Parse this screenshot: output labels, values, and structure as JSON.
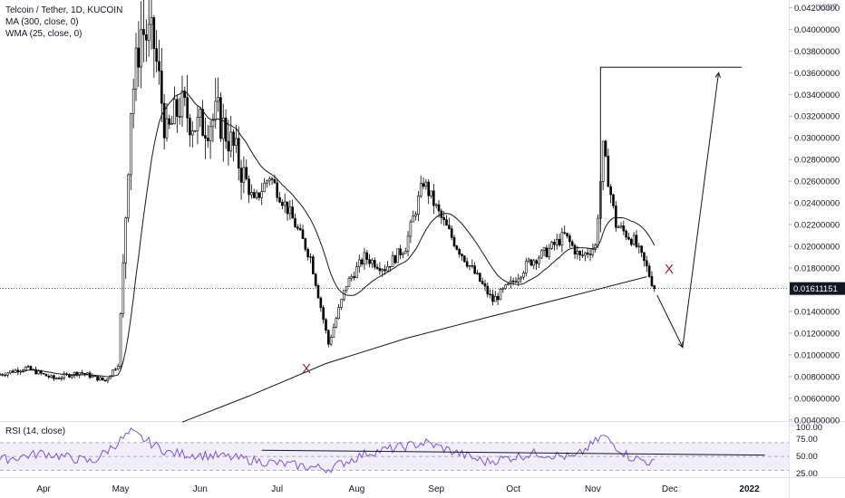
{
  "legend": {
    "title": "Telcoin / Tether, 1D, KUCOIN",
    "ma": "MA (300, close, 0)",
    "wma": "WMA (25, close, 0)"
  },
  "rsi_label": "RSI (14, close)",
  "currency": "USDT",
  "last_price_label": "0.01611151",
  "colors": {
    "candle": "#000000",
    "ma_line": "#131722",
    "dashed_line": "#8a8a8a",
    "red_dashed": "#a34a5a",
    "x_marker": "#8c2a3c",
    "rsi_band": "#7e57c2",
    "rsi_line": "#7e57c2",
    "last_price_bg": "#131722"
  },
  "annotations": {
    "marker_left": "X",
    "marker_right": "X"
  },
  "chart_data": [
    {
      "type": "candlestick",
      "title": "Telcoin / Tether, 1D, KUCOIN",
      "x_tick_labels": [
        "Apr",
        "May",
        "Jun",
        "Jul",
        "Aug",
        "Sep",
        "Oct",
        "Nov",
        "Dec",
        "2022"
      ],
      "y_tick_labels": [
        "0.04200000",
        "0.04000000",
        "0.03800000",
        "0.03600000",
        "0.03400000",
        "0.03200000",
        "0.03000000",
        "0.02800000",
        "0.02600000",
        "0.02400000",
        "0.02200000",
        "0.02000000",
        "0.01800000",
        "0.01400000",
        "0.01200000",
        "0.01000000",
        "0.00800000",
        "0.00600000",
        "0.00400000"
      ],
      "ylim": [
        0.0039,
        0.0427
      ],
      "last_price": 0.01611151,
      "price_path": [
        [
          "2021-03-15",
          0.0082
        ],
        [
          "2021-03-25",
          0.0088
        ],
        [
          "2021-04-05",
          0.0078
        ],
        [
          "2021-04-15",
          0.0084
        ],
        [
          "2021-04-25",
          0.0076
        ],
        [
          "2021-04-30",
          0.0092
        ],
        [
          "2021-05-02",
          0.018
        ],
        [
          "2021-05-05",
          0.033
        ],
        [
          "2021-05-09",
          0.04
        ],
        [
          "2021-05-14",
          0.0385
        ],
        [
          "2021-05-19",
          0.03
        ],
        [
          "2021-05-24",
          0.033
        ],
        [
          "2021-05-31",
          0.031
        ],
        [
          "2021-06-08",
          0.032
        ],
        [
          "2021-06-14",
          0.029
        ],
        [
          "2021-06-22",
          0.024
        ],
        [
          "2021-06-28",
          0.0265
        ],
        [
          "2021-07-06",
          0.023
        ],
        [
          "2021-07-14",
          0.019
        ],
        [
          "2021-07-21",
          0.011
        ],
        [
          "2021-07-28",
          0.0165
        ],
        [
          "2021-08-04",
          0.019
        ],
        [
          "2021-08-12",
          0.018
        ],
        [
          "2021-08-20",
          0.02
        ],
        [
          "2021-08-27",
          0.026
        ],
        [
          "2021-09-02",
          0.023
        ],
        [
          "2021-09-09",
          0.02
        ],
        [
          "2021-09-16",
          0.0175
        ],
        [
          "2021-09-23",
          0.015
        ],
        [
          "2021-09-30",
          0.0165
        ],
        [
          "2021-10-07",
          0.0185
        ],
        [
          "2021-10-14",
          0.0195
        ],
        [
          "2021-10-21",
          0.021
        ],
        [
          "2021-10-27",
          0.019
        ],
        [
          "2021-11-02",
          0.02
        ],
        [
          "2021-11-05",
          0.029
        ],
        [
          "2021-11-10",
          0.022
        ],
        [
          "2021-11-17",
          0.0205
        ],
        [
          "2021-11-22",
          0.018
        ],
        [
          "2021-11-25",
          0.0161
        ]
      ],
      "annotation_peak_level": 0.0365,
      "projected_path": [
        [
          "2021-11-25",
          0.0155
        ],
        [
          "2021-12-06",
          0.0107
        ],
        [
          "2021-12-20",
          0.036
        ]
      ]
    },
    {
      "type": "line",
      "title": "RSI (14, close)",
      "y_tick_labels": [
        "100.00",
        "75.00",
        "50.00",
        "25.00"
      ],
      "ylim": [
        20,
        100
      ],
      "band": [
        30,
        70
      ],
      "trendline_level": 52,
      "rsi_path": [
        [
          "2021-03-15",
          45
        ],
        [
          "2021-04-01",
          55
        ],
        [
          "2021-04-20",
          42
        ],
        [
          "2021-05-05",
          85
        ],
        [
          "2021-05-20",
          55
        ],
        [
          "2021-06-10",
          50
        ],
        [
          "2021-07-01",
          40
        ],
        [
          "2021-07-21",
          32
        ],
        [
          "2021-08-05",
          55
        ],
        [
          "2021-08-28",
          70
        ],
        [
          "2021-09-20",
          42
        ],
        [
          "2021-10-10",
          55
        ],
        [
          "2021-10-25",
          48
        ],
        [
          "2021-11-05",
          80
        ],
        [
          "2021-11-15",
          50
        ],
        [
          "2021-11-25",
          40
        ]
      ]
    }
  ]
}
